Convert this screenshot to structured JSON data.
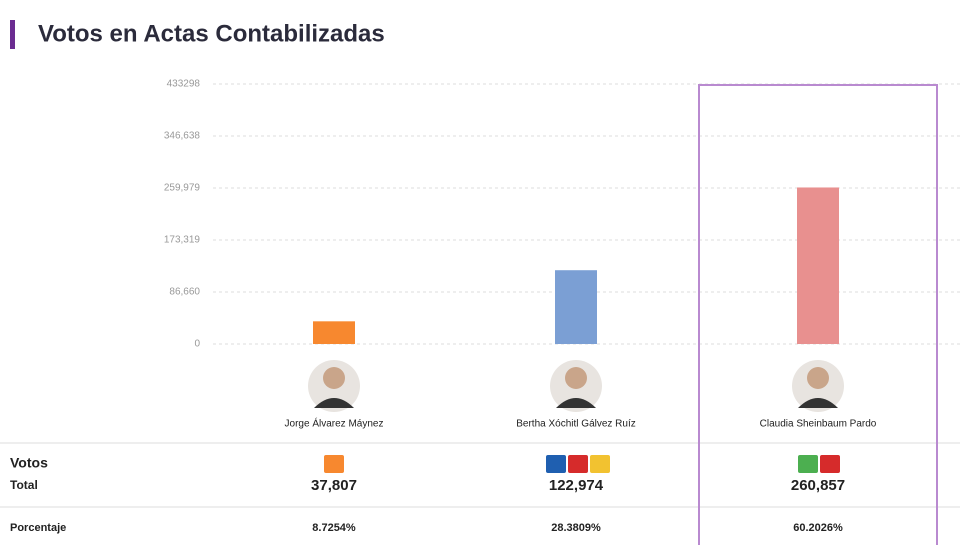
{
  "chart_data": {
    "type": "bar",
    "title": "Votos en Actas Contabilizadas",
    "categories": [
      "Jorge Álvarez Máynez",
      "Bertha Xóchitl Gálvez Ruíz",
      "Claudia Sheinbaum Pardo"
    ],
    "values": [
      37807,
      122974,
      260857
    ],
    "value_labels": [
      "37,807",
      "122,974",
      "260,857"
    ],
    "colors": [
      "#f7882f",
      "#7b9fd4",
      "#e8908f"
    ],
    "ylim": [
      0,
      433298
    ],
    "yticks": [
      0,
      {
        "value": 86660,
        "label": "86,660"
      },
      {
        "value": 173319,
        "label": "173,319"
      },
      {
        "value": 259979,
        "label": "259,979"
      },
      {
        "value": 346638,
        "label": "346,638"
      },
      433298
    ],
    "grid": true,
    "highlight_color": "#b98ad0"
  },
  "table": {
    "votes_label": "Votos",
    "total_label": "Total",
    "percent_label": "Porcentaje",
    "percentages": [
      "8.7254%",
      "28.3809%",
      "60.2026%"
    ]
  }
}
